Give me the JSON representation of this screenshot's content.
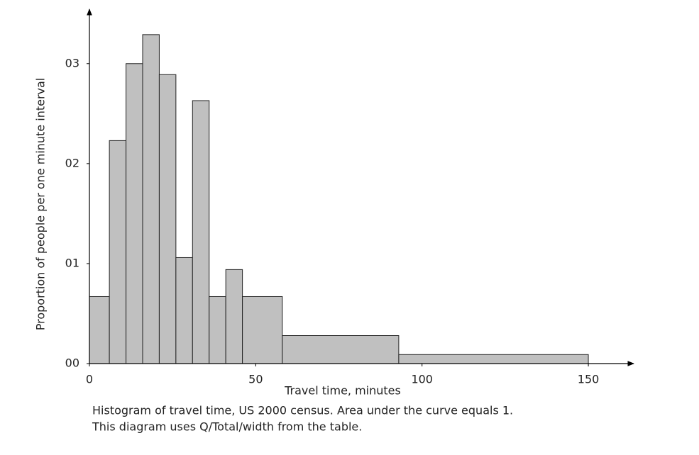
{
  "chart_data": {
    "type": "histogram",
    "xlabel": "Travel time, minutes",
    "ylabel": "Proportion of people per one minute interval",
    "caption": [
      "Histogram of travel time, US 2000 census. Area under the curve equals 1.",
      "This diagram uses Q/Total/width from the table."
    ],
    "bins": [
      0,
      6,
      11,
      16,
      21,
      26,
      31,
      36,
      41,
      46,
      58,
      93,
      150
    ],
    "values": [
      0.0067,
      0.0223,
      0.03,
      0.0329,
      0.0289,
      0.0106,
      0.0263,
      0.0067,
      0.0094,
      0.0067,
      0.0028,
      0.0009
    ],
    "color": "#c0c0c0",
    "xlim": [
      0,
      163
    ],
    "xticks": [
      0,
      50,
      100,
      150
    ],
    "ylim": [
      0,
      0.0353
    ],
    "yticks": [
      {
        "value": 0,
        "label": "00"
      },
      {
        "value": 0.01,
        "label": "01"
      },
      {
        "value": 0.02,
        "label": "02"
      },
      {
        "value": 0.03,
        "label": "03"
      }
    ]
  }
}
